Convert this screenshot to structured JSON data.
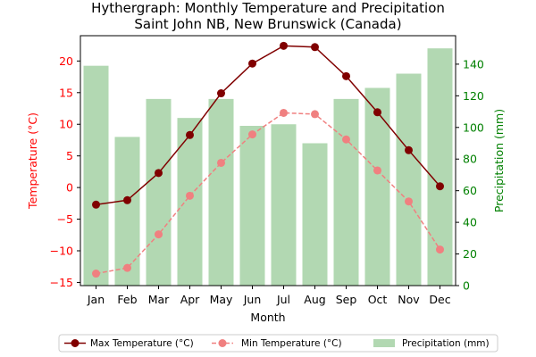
{
  "chart_data": {
    "type": "bar+line",
    "title": "Hythergraph: Monthly Temperature and Precipitation",
    "subtitle": "Saint John NB, New Brunswick (Canada)",
    "xlabel": "Month",
    "ylabel_left": "Temperature (°C)",
    "ylabel_right": "Precipitation (mm)",
    "categories": [
      "Jan",
      "Feb",
      "Mar",
      "Apr",
      "May",
      "Jun",
      "Jul",
      "Aug",
      "Sep",
      "Oct",
      "Nov",
      "Dec"
    ],
    "ylim_left": [
      -15.5,
      24.0
    ],
    "ylim_right": [
      0,
      158
    ],
    "yticks_left": [
      -15,
      -10,
      -5,
      0,
      5,
      10,
      15,
      20
    ],
    "yticks_right": [
      0,
      20,
      40,
      60,
      80,
      100,
      120,
      140
    ],
    "legend_position": "bottom-center",
    "grid": false,
    "series": [
      {
        "name": "Max Temperature (°C)",
        "axis": "left",
        "kind": "line",
        "color": "#800000",
        "style": "solid",
        "values": [
          -2.7,
          -2.0,
          2.3,
          8.3,
          14.9,
          19.6,
          22.4,
          22.2,
          17.6,
          11.9,
          5.9,
          0.2
        ]
      },
      {
        "name": "Min Temperature (°C)",
        "axis": "left",
        "kind": "line",
        "color": "#f08080",
        "style": "dashed",
        "values": [
          -13.6,
          -12.7,
          -7.4,
          -1.3,
          3.9,
          8.4,
          11.8,
          11.6,
          7.6,
          2.7,
          -2.2,
          -9.8
        ]
      },
      {
        "name": "Precipitation (mm)",
        "axis": "right",
        "kind": "bar",
        "color": "#b2d8b2",
        "values": [
          139,
          94,
          118,
          106,
          118,
          101,
          102,
          90,
          118,
          125,
          134,
          150
        ]
      }
    ]
  },
  "colors": {
    "left_axis": "#ff0000",
    "right_axis": "#008000"
  }
}
